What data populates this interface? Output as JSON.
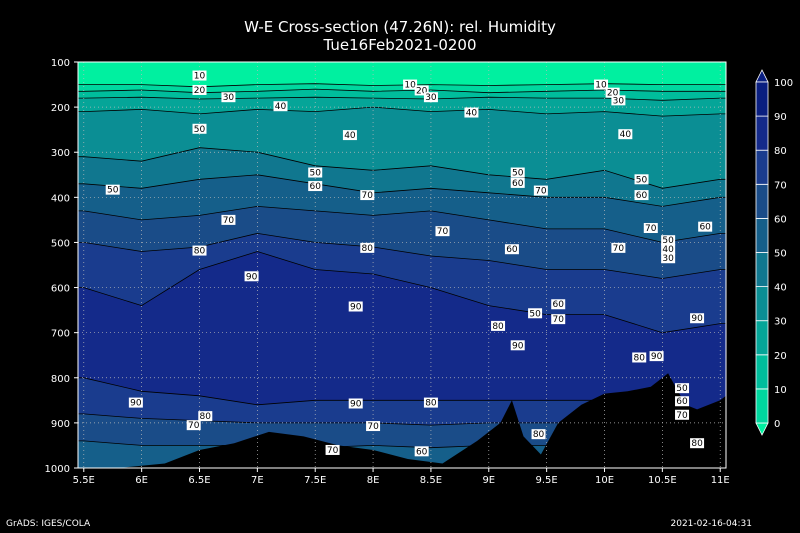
{
  "title": "W-E Cross-section (47.26N): rel. Humidity",
  "subtitle": "Tue16Feb2021-0200",
  "footer_left": "GrADS: IGES/COLA",
  "footer_right": "2021-02-16-04:31",
  "chart_data": {
    "type": "heatmap",
    "variable": "rel. Humidity",
    "x_ticks": [
      5.5,
      6,
      6.5,
      7,
      7.5,
      8,
      8.5,
      9,
      9.5,
      10,
      10.5,
      11
    ],
    "x_tick_labels": [
      "5.5E",
      "6E",
      "6.5E",
      "7E",
      "7.5E",
      "8E",
      "8.5E",
      "9E",
      "9.5E",
      "10E",
      "10.5E",
      "11E"
    ],
    "xlim": [
      5.45,
      11.05
    ],
    "y_ticks": [
      100,
      200,
      300,
      400,
      500,
      600,
      700,
      800,
      900,
      1000
    ],
    "y_tick_labels": [
      "100",
      "200",
      "300",
      "400",
      "500",
      "600",
      "700",
      "800",
      "900",
      "1000"
    ],
    "ylim": [
      1000,
      100
    ],
    "grid": true,
    "colorbar": {
      "levels": [
        0,
        10,
        20,
        30,
        40,
        50,
        60,
        70,
        80,
        90,
        100
      ],
      "labels": [
        "0",
        "10",
        "20",
        "30",
        "40",
        "50",
        "60",
        "70",
        "80",
        "90",
        "100"
      ],
      "colors": [
        "#00f0a0",
        "#00d79f",
        "#00bd9c",
        "#05a598",
        "#0b8e94",
        "#10778f",
        "#155f8a",
        "#1a4c88",
        "#1a3c8e",
        "#142a8a",
        "#0a1f80"
      ]
    },
    "bands": [
      {
        "value": 10,
        "p": [
          150,
          150,
          155,
          150,
          148,
          152,
          150,
          152,
          150,
          148,
          150,
          150
        ]
      },
      {
        "value": 20,
        "p": [
          165,
          162,
          168,
          165,
          160,
          165,
          162,
          168,
          165,
          162,
          165,
          165
        ]
      },
      {
        "value": 30,
        "p": [
          180,
          178,
          182,
          180,
          178,
          180,
          182,
          178,
          180,
          180,
          185,
          180
        ]
      },
      {
        "value": 40,
        "p": [
          210,
          205,
          215,
          205,
          210,
          200,
          210,
          205,
          215,
          210,
          220,
          215
        ]
      },
      {
        "value": 50,
        "p": [
          310,
          320,
          290,
          300,
          330,
          340,
          330,
          350,
          360,
          340,
          380,
          360
        ]
      },
      {
        "value": 60,
        "p": [
          370,
          380,
          360,
          350,
          370,
          390,
          380,
          390,
          400,
          400,
          420,
          400
        ]
      },
      {
        "value": 70,
        "p": [
          430,
          450,
          440,
          420,
          430,
          440,
          430,
          450,
          470,
          470,
          500,
          480
        ]
      },
      {
        "value": 80,
        "p": [
          500,
          520,
          510,
          480,
          500,
          510,
          530,
          540,
          560,
          560,
          580,
          560
        ]
      },
      {
        "value": 90,
        "p": [
          600,
          640,
          560,
          520,
          560,
          570,
          600,
          640,
          660,
          660,
          700,
          680
        ]
      }
    ],
    "low_levels": [
      {
        "value": 80,
        "p": [
          800,
          830,
          840,
          860,
          850,
          850,
          850,
          850,
          850,
          850,
          860,
          880
        ]
      },
      {
        "value": 70,
        "p": [
          880,
          890,
          895,
          900,
          900,
          900,
          905,
          900,
          900,
          900,
          900,
          900
        ]
      },
      {
        "value": 60,
        "p": [
          940,
          950,
          950,
          950,
          955,
          950,
          955,
          950,
          950,
          950,
          950,
          950
        ]
      }
    ],
    "terrain": [
      {
        "x": 5.45,
        "p": 1000
      },
      {
        "x": 5.8,
        "p": 1000
      },
      {
        "x": 6.2,
        "p": 990
      },
      {
        "x": 6.5,
        "p": 960
      },
      {
        "x": 6.8,
        "p": 945
      },
      {
        "x": 7.1,
        "p": 920
      },
      {
        "x": 7.4,
        "p": 930
      },
      {
        "x": 7.7,
        "p": 950
      },
      {
        "x": 8.0,
        "p": 960
      },
      {
        "x": 8.3,
        "p": 980
      },
      {
        "x": 8.6,
        "p": 990
      },
      {
        "x": 8.9,
        "p": 940
      },
      {
        "x": 9.1,
        "p": 900
      },
      {
        "x": 9.2,
        "p": 850
      },
      {
        "x": 9.3,
        "p": 930
      },
      {
        "x": 9.45,
        "p": 970
      },
      {
        "x": 9.6,
        "p": 900
      },
      {
        "x": 9.8,
        "p": 860
      },
      {
        "x": 10.0,
        "p": 835
      },
      {
        "x": 10.2,
        "p": 830
      },
      {
        "x": 10.4,
        "p": 820
      },
      {
        "x": 10.55,
        "p": 790
      },
      {
        "x": 10.7,
        "p": 860
      },
      {
        "x": 10.8,
        "p": 870
      },
      {
        "x": 11.0,
        "p": 850
      },
      {
        "x": 11.05,
        "p": 840
      }
    ],
    "contour_labels": [
      {
        "x": 6.5,
        "p": 130,
        "text": "10"
      },
      {
        "x": 6.5,
        "p": 162,
        "text": "20"
      },
      {
        "x": 6.75,
        "p": 178,
        "text": "30"
      },
      {
        "x": 7.2,
        "p": 198,
        "text": "40"
      },
      {
        "x": 6.5,
        "p": 248,
        "text": "50"
      },
      {
        "x": 7.8,
        "p": 262,
        "text": "40"
      },
      {
        "x": 8.32,
        "p": 150,
        "text": "10"
      },
      {
        "x": 8.42,
        "p": 163,
        "text": "20"
      },
      {
        "x": 8.5,
        "p": 178,
        "text": "30"
      },
      {
        "x": 8.85,
        "p": 212,
        "text": "40"
      },
      {
        "x": 9.97,
        "p": 150,
        "text": "10"
      },
      {
        "x": 10.07,
        "p": 168,
        "text": "20"
      },
      {
        "x": 10.12,
        "p": 185,
        "text": "30"
      },
      {
        "x": 10.18,
        "p": 260,
        "text": "40"
      },
      {
        "x": 7.5,
        "p": 345,
        "text": "50"
      },
      {
        "x": 7.5,
        "p": 375,
        "text": "60"
      },
      {
        "x": 5.75,
        "p": 383,
        "text": "50"
      },
      {
        "x": 7.95,
        "p": 395,
        "text": "70"
      },
      {
        "x": 6.75,
        "p": 450,
        "text": "70"
      },
      {
        "x": 6.5,
        "p": 518,
        "text": "80"
      },
      {
        "x": 7.95,
        "p": 512,
        "text": "80"
      },
      {
        "x": 8.6,
        "p": 475,
        "text": "70"
      },
      {
        "x": 6.95,
        "p": 575,
        "text": "90"
      },
      {
        "x": 7.85,
        "p": 642,
        "text": "90"
      },
      {
        "x": 9.25,
        "p": 345,
        "text": "50"
      },
      {
        "x": 9.25,
        "p": 368,
        "text": "60"
      },
      {
        "x": 9.45,
        "p": 385,
        "text": "70"
      },
      {
        "x": 9.2,
        "p": 515,
        "text": "60"
      },
      {
        "x": 9.08,
        "p": 685,
        "text": "80"
      },
      {
        "x": 9.25,
        "p": 728,
        "text": "90"
      },
      {
        "x": 9.4,
        "p": 657,
        "text": "50"
      },
      {
        "x": 9.6,
        "p": 637,
        "text": "60"
      },
      {
        "x": 9.6,
        "p": 670,
        "text": "70"
      },
      {
        "x": 10.32,
        "p": 360,
        "text": "50"
      },
      {
        "x": 10.32,
        "p": 395,
        "text": "60"
      },
      {
        "x": 10.4,
        "p": 468,
        "text": "70"
      },
      {
        "x": 10.12,
        "p": 512,
        "text": "70"
      },
      {
        "x": 10.55,
        "p": 495,
        "text": "50"
      },
      {
        "x": 10.55,
        "p": 515,
        "text": "40"
      },
      {
        "x": 10.55,
        "p": 535,
        "text": "30"
      },
      {
        "x": 10.87,
        "p": 465,
        "text": "60"
      },
      {
        "x": 10.8,
        "p": 668,
        "text": "90"
      },
      {
        "x": 10.3,
        "p": 755,
        "text": "80"
      },
      {
        "x": 10.45,
        "p": 752,
        "text": "90"
      },
      {
        "x": 10.67,
        "p": 823,
        "text": "50"
      },
      {
        "x": 10.67,
        "p": 852,
        "text": "60"
      },
      {
        "x": 10.67,
        "p": 882,
        "text": "70"
      },
      {
        "x": 10.8,
        "p": 945,
        "text": "80"
      },
      {
        "x": 9.43,
        "p": 925,
        "text": "80"
      },
      {
        "x": 5.95,
        "p": 855,
        "text": "90"
      },
      {
        "x": 6.55,
        "p": 885,
        "text": "80"
      },
      {
        "x": 6.45,
        "p": 905,
        "text": "70"
      },
      {
        "x": 7.85,
        "p": 857,
        "text": "90"
      },
      {
        "x": 8.5,
        "p": 855,
        "text": "80"
      },
      {
        "x": 8.0,
        "p": 907,
        "text": "70"
      },
      {
        "x": 7.65,
        "p": 960,
        "text": "70"
      },
      {
        "x": 8.42,
        "p": 963,
        "text": "60"
      }
    ]
  }
}
